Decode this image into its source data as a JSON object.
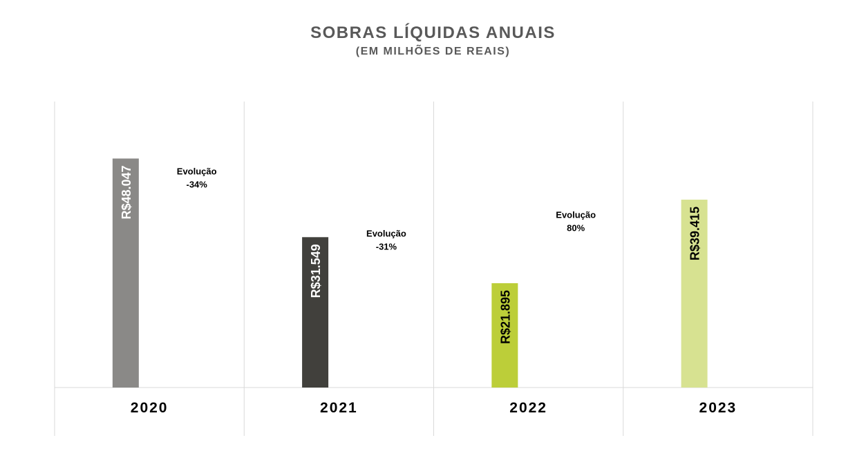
{
  "title": "SOBRAS LÍQUIDAS ANUAIS",
  "subtitle": "(EM MILHÕES DE REAIS)",
  "chart_data": {
    "type": "bar",
    "title": "SOBRAS LÍQUIDAS ANUAIS",
    "subtitle": "(EM MILHÕES DE REAIS)",
    "categories": [
      "2020",
      "2021",
      "2022",
      "2023"
    ],
    "values": [
      48047,
      31549,
      21895,
      39415
    ],
    "data_labels": [
      "R$48.047",
      "R$31.549",
      "R$21.895",
      "R$39.415"
    ],
    "colors": [
      "#8a8987",
      "#41403c",
      "#bcce39",
      "#d7e291"
    ],
    "label_colors": [
      "#ffffff",
      "#ffffff",
      "#000000",
      "#000000"
    ],
    "ylim": [
      0,
      60000
    ],
    "annotations": [
      {
        "line1": "Evolução",
        "line2": "-34%"
      },
      {
        "line1": "Evolução",
        "line2": "-31%"
      },
      {
        "line1": "Evolução",
        "line2": "80%"
      }
    ],
    "grid": "vertical",
    "legend": "none"
  }
}
